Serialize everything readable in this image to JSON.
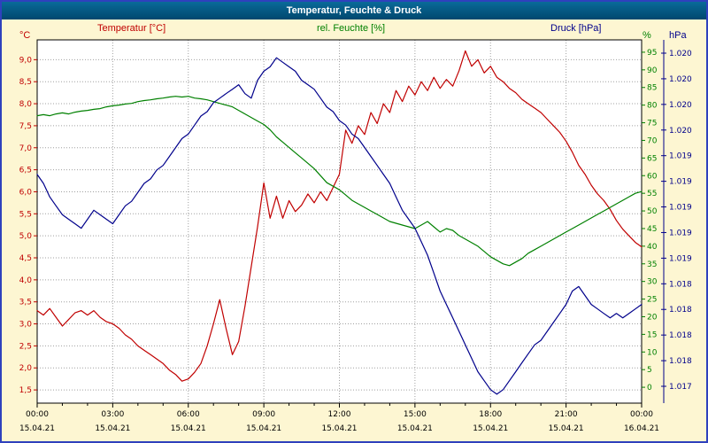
{
  "window": {
    "title": "Temperatur, Feuchte & Druck"
  },
  "legend": {
    "temperature": "Temperatur [°C]",
    "humidity": "rel. Feuchte [%]",
    "pressure": "Druck [hPa]"
  },
  "colors": {
    "temperature": "#c00000",
    "humidity": "#008000",
    "pressure": "#00008b",
    "grid": "#a0a0a0",
    "plot_border": "#000000",
    "frame": "#2f41bd",
    "titlebar": "#00587f",
    "background": "#fdf6d2"
  },
  "axes": {
    "left": {
      "unit": "°C",
      "tick_labels": [
        "9,0",
        "8,5",
        "8,0",
        "7,5",
        "7,0",
        "6,5",
        "6,0",
        "5,5",
        "5,0",
        "4,5",
        "4,0",
        "3,5",
        "3,0",
        "2,5",
        "2,0",
        "1,5"
      ]
    },
    "humidity": {
      "unit": "%",
      "tick_labels": [
        "95",
        "90",
        "85",
        "80",
        "75",
        "70",
        "65",
        "60",
        "55",
        "50",
        "45",
        "40",
        "35",
        "30",
        "25",
        "20",
        "15",
        "10",
        "5",
        "0"
      ]
    },
    "pressure": {
      "unit": "hPa",
      "tick_labels": [
        "1.020",
        "1.020",
        "1.020",
        "1.020",
        "1.019",
        "1.019",
        "1.019",
        "1.019",
        "1.019",
        "1.018",
        "1.018",
        "1.018",
        "1.018",
        "1.017"
      ]
    },
    "x": {
      "time_labels": [
        "00:00",
        "03:00",
        "06:00",
        "09:00",
        "12:00",
        "15:00",
        "18:00",
        "21:00",
        "00:00"
      ],
      "date_labels": [
        "15.04.21",
        "15.04.21",
        "15.04.21",
        "15.04.21",
        "15.04.21",
        "15.04.21",
        "15.04.21",
        "15.04.21",
        "16.04.21"
      ],
      "major_interval_hours": 3,
      "minor_interval_hours": 1
    }
  },
  "chart_data": {
    "type": "line",
    "title": "Temperatur, Feuchte & Druck",
    "x_hours_range": [
      0,
      24
    ],
    "sample_interval_minutes": 15,
    "grid": "dotted",
    "legend_position": "top",
    "axis_ranges": {
      "temp": [
        1.2,
        9.45
      ],
      "humidity": [
        -4.5,
        98.5
      ],
      "pressure": [
        1016.85,
        1020.9
      ]
    },
    "series": [
      {
        "name": "Temperatur [°C]",
        "unit": "°C",
        "axis": "temp",
        "color": "#c00000",
        "values": [
          3.3,
          3.2,
          3.35,
          3.15,
          2.95,
          3.1,
          3.25,
          3.3,
          3.2,
          3.3,
          3.15,
          3.05,
          3.0,
          2.9,
          2.75,
          2.65,
          2.5,
          2.4,
          2.3,
          2.2,
          2.1,
          1.95,
          1.85,
          1.7,
          1.75,
          1.9,
          2.1,
          2.5,
          3.0,
          3.55,
          2.9,
          2.3,
          2.6,
          3.4,
          4.3,
          5.2,
          6.2,
          5.4,
          5.9,
          5.4,
          5.8,
          5.55,
          5.7,
          5.95,
          5.75,
          6.0,
          5.8,
          6.1,
          6.4,
          7.4,
          7.1,
          7.5,
          7.3,
          7.8,
          7.55,
          8.0,
          7.8,
          8.3,
          8.05,
          8.4,
          8.2,
          8.5,
          8.3,
          8.6,
          8.35,
          8.55,
          8.4,
          8.75,
          9.2,
          8.85,
          9.0,
          8.7,
          8.85,
          8.6,
          8.5,
          8.35,
          8.25,
          8.1,
          8.0,
          7.9,
          7.8,
          7.65,
          7.5,
          7.35,
          7.15,
          6.9,
          6.6,
          6.4,
          6.15,
          5.95,
          5.8,
          5.6,
          5.35,
          5.15,
          5.0,
          4.85,
          4.75
        ]
      },
      {
        "name": "rel. Feuchte [%]",
        "unit": "%",
        "axis": "humidity",
        "color": "#008000",
        "values": [
          77,
          77.3,
          77,
          77.5,
          77.8,
          77.5,
          78,
          78.3,
          78.5,
          78.8,
          79,
          79.5,
          79.8,
          80,
          80.3,
          80.5,
          81,
          81.3,
          81.5,
          81.8,
          82,
          82.3,
          82.5,
          82.3,
          82.5,
          82,
          81.8,
          81.5,
          81,
          80.5,
          80,
          79.5,
          78.5,
          77.5,
          76.5,
          75.5,
          74.5,
          73,
          71,
          69.5,
          68,
          66.5,
          65,
          63.5,
          62,
          60,
          58,
          57,
          56,
          54.5,
          53,
          52,
          51,
          50,
          49,
          48,
          47,
          46.5,
          46,
          45.5,
          45,
          46,
          47,
          45.5,
          44,
          45,
          44.5,
          43,
          42,
          41,
          40,
          38.5,
          37,
          36,
          35,
          34.5,
          35.5,
          36.5,
          38,
          39,
          40,
          41,
          42,
          43,
          44,
          45,
          46,
          47,
          48,
          49,
          50,
          51,
          52,
          53,
          54,
          55,
          55.5
        ]
      },
      {
        "name": "Druck [hPa]",
        "unit": "hPa",
        "axis": "pressure",
        "color": "#00008b",
        "values": [
          1019.4,
          1019.3,
          1019.15,
          1019.05,
          1018.95,
          1018.9,
          1018.85,
          1018.8,
          1018.9,
          1019.0,
          1018.95,
          1018.9,
          1018.85,
          1018.95,
          1019.05,
          1019.1,
          1019.2,
          1019.3,
          1019.35,
          1019.45,
          1019.5,
          1019.6,
          1019.7,
          1019.8,
          1019.85,
          1019.95,
          1020.05,
          1020.1,
          1020.2,
          1020.25,
          1020.3,
          1020.35,
          1020.4,
          1020.3,
          1020.25,
          1020.45,
          1020.55,
          1020.6,
          1020.7,
          1020.65,
          1020.6,
          1020.55,
          1020.45,
          1020.4,
          1020.35,
          1020.25,
          1020.15,
          1020.1,
          1020.0,
          1019.95,
          1019.85,
          1019.8,
          1019.7,
          1019.6,
          1019.5,
          1019.4,
          1019.3,
          1019.15,
          1019.0,
          1018.9,
          1018.8,
          1018.65,
          1018.5,
          1018.3,
          1018.1,
          1017.95,
          1017.8,
          1017.65,
          1017.5,
          1017.35,
          1017.2,
          1017.1,
          1017.0,
          1016.95,
          1017.0,
          1017.1,
          1017.2,
          1017.3,
          1017.4,
          1017.5,
          1017.55,
          1017.65,
          1017.75,
          1017.85,
          1017.95,
          1018.1,
          1018.15,
          1018.05,
          1017.95,
          1017.9,
          1017.85,
          1017.8,
          1017.85,
          1017.8,
          1017.85,
          1017.9,
          1017.95
        ]
      }
    ]
  }
}
